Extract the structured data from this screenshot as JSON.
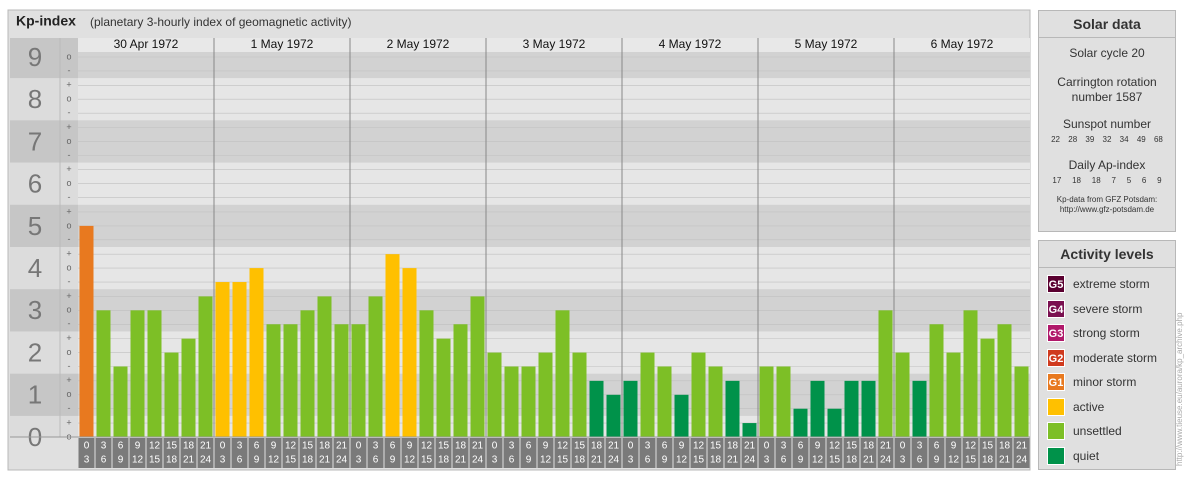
{
  "chart_data": {
    "type": "bar",
    "title": "Kp-index",
    "subtitle": "(planetary 3-hourly index of geomagnetic activity)",
    "hours": [
      [
        "0",
        "3"
      ],
      [
        "3",
        "6"
      ],
      [
        "6",
        "9"
      ],
      [
        "9",
        "12"
      ],
      [
        "12",
        "15"
      ],
      [
        "15",
        "18"
      ],
      [
        "18",
        "21"
      ],
      [
        "21",
        "24"
      ]
    ],
    "series": [
      {
        "name": "30 Apr 1972",
        "values": [
          5,
          3,
          1.67,
          3,
          3,
          2,
          2.33,
          3.33
        ],
        "colors": [
          "#e8791f",
          "#7dbf26",
          "#7dbf26",
          "#7dbf26",
          "#7dbf26",
          "#7dbf26",
          "#7dbf26",
          "#7dbf26"
        ]
      },
      {
        "name": "1 May 1972",
        "values": [
          3.67,
          3.67,
          4,
          2.67,
          2.67,
          3,
          3.33,
          2.67
        ],
        "colors": [
          "#ffc000",
          "#ffc000",
          "#ffc000",
          "#7dbf26",
          "#7dbf26",
          "#7dbf26",
          "#7dbf26",
          "#7dbf26"
        ]
      },
      {
        "name": "2 May 1972",
        "values": [
          2.67,
          3.33,
          4.33,
          4,
          3,
          2.33,
          2.67,
          3.33
        ],
        "colors": [
          "#7dbf26",
          "#7dbf26",
          "#ffc000",
          "#ffc000",
          "#7dbf26",
          "#7dbf26",
          "#7dbf26",
          "#7dbf26"
        ]
      },
      {
        "name": "3 May 1972",
        "values": [
          2,
          1.67,
          1.67,
          2,
          3,
          2,
          1.33,
          1
        ],
        "colors": [
          "#7dbf26",
          "#7dbf26",
          "#7dbf26",
          "#7dbf26",
          "#7dbf26",
          "#7dbf26",
          "#00924a",
          "#00924a"
        ]
      },
      {
        "name": "4 May 1972",
        "values": [
          1.33,
          2,
          1.67,
          1,
          2,
          1.67,
          1.33,
          0.33
        ],
        "colors": [
          "#00924a",
          "#7dbf26",
          "#7dbf26",
          "#00924a",
          "#7dbf26",
          "#7dbf26",
          "#00924a",
          "#00924a"
        ]
      },
      {
        "name": "5 May 1972",
        "values": [
          1.67,
          1.67,
          0.67,
          1.33,
          0.67,
          1.33,
          1.33,
          3
        ],
        "colors": [
          "#7dbf26",
          "#7dbf26",
          "#00924a",
          "#00924a",
          "#00924a",
          "#00924a",
          "#00924a",
          "#7dbf26"
        ]
      },
      {
        "name": "6 May 1972",
        "values": [
          2,
          1.33,
          2.67,
          2,
          3,
          2.33,
          2.67,
          1.67
        ],
        "colors": [
          "#7dbf26",
          "#00924a",
          "#7dbf26",
          "#7dbf26",
          "#7dbf26",
          "#7dbf26",
          "#7dbf26",
          "#7dbf26"
        ]
      }
    ],
    "ylim": [
      0,
      9
    ],
    "yticks": [
      0,
      1,
      2,
      3,
      4,
      5,
      6,
      7,
      8,
      9
    ],
    "minor_yticks": [
      {
        "value": 0,
        "label": "o"
      },
      {
        "value": 0.33,
        "label": "+"
      },
      {
        "value": 0.67,
        "label": "-"
      },
      {
        "value": 1,
        "label": "o"
      },
      {
        "value": 1.33,
        "label": "+"
      },
      {
        "value": 1.67,
        "label": "-"
      },
      {
        "value": 2,
        "label": "o"
      },
      {
        "value": 2.33,
        "label": "+"
      },
      {
        "value": 2.67,
        "label": "-"
      },
      {
        "value": 3,
        "label": "o"
      },
      {
        "value": 3.33,
        "label": "+"
      },
      {
        "value": 3.67,
        "label": "-"
      },
      {
        "value": 4,
        "label": "o"
      },
      {
        "value": 4.33,
        "label": "+"
      },
      {
        "value": 4.67,
        "label": "-"
      },
      {
        "value": 5,
        "label": "o"
      },
      {
        "value": 5.33,
        "label": "+"
      },
      {
        "value": 5.67,
        "label": "-"
      },
      {
        "value": 6,
        "label": "o"
      },
      {
        "value": 6.33,
        "label": "+"
      },
      {
        "value": 6.67,
        "label": "-"
      },
      {
        "value": 7,
        "label": "o"
      },
      {
        "value": 7.33,
        "label": "+"
      },
      {
        "value": 7.67,
        "label": "-"
      },
      {
        "value": 8,
        "label": "o"
      },
      {
        "value": 8.33,
        "label": "+"
      },
      {
        "value": 8.67,
        "label": "-"
      },
      {
        "value": 9,
        "label": "o"
      }
    ],
    "grid": true
  },
  "solar": {
    "title": "Solar data",
    "cycle": "Solar cycle 20",
    "carrington": [
      "Carrington rotation",
      "number 1587"
    ],
    "sunspot_title": "Sunspot number",
    "sunspot_numbers": [
      22,
      28,
      39,
      32,
      34,
      49,
      68
    ],
    "ap_title": "Daily Ap-index",
    "ap_values": [
      17,
      18,
      18,
      7,
      5,
      6,
      9
    ],
    "source": "Kp-data from GFZ Potsdam:",
    "source_url": "http://www.gfz-potsdam.de"
  },
  "activity": {
    "title": "Activity levels",
    "levels": [
      {
        "badge": "G5",
        "label": "extreme storm",
        "color": "#5a0030"
      },
      {
        "badge": "G4",
        "label": "severe storm",
        "color": "#7a1050"
      },
      {
        "badge": "G3",
        "label": "strong storm",
        "color": "#b0186a"
      },
      {
        "badge": "G2",
        "label": "moderate storm",
        "color": "#d03a1e"
      },
      {
        "badge": "G1",
        "label": "minor storm",
        "color": "#e8791f"
      },
      {
        "label": "active",
        "color": "#ffc000"
      },
      {
        "label": "unsettled",
        "color": "#7dbf26"
      },
      {
        "label": "quiet",
        "color": "#00924a"
      }
    ]
  },
  "watermark": "http://www.tieuse.eu/aurora/kp_archive.php"
}
